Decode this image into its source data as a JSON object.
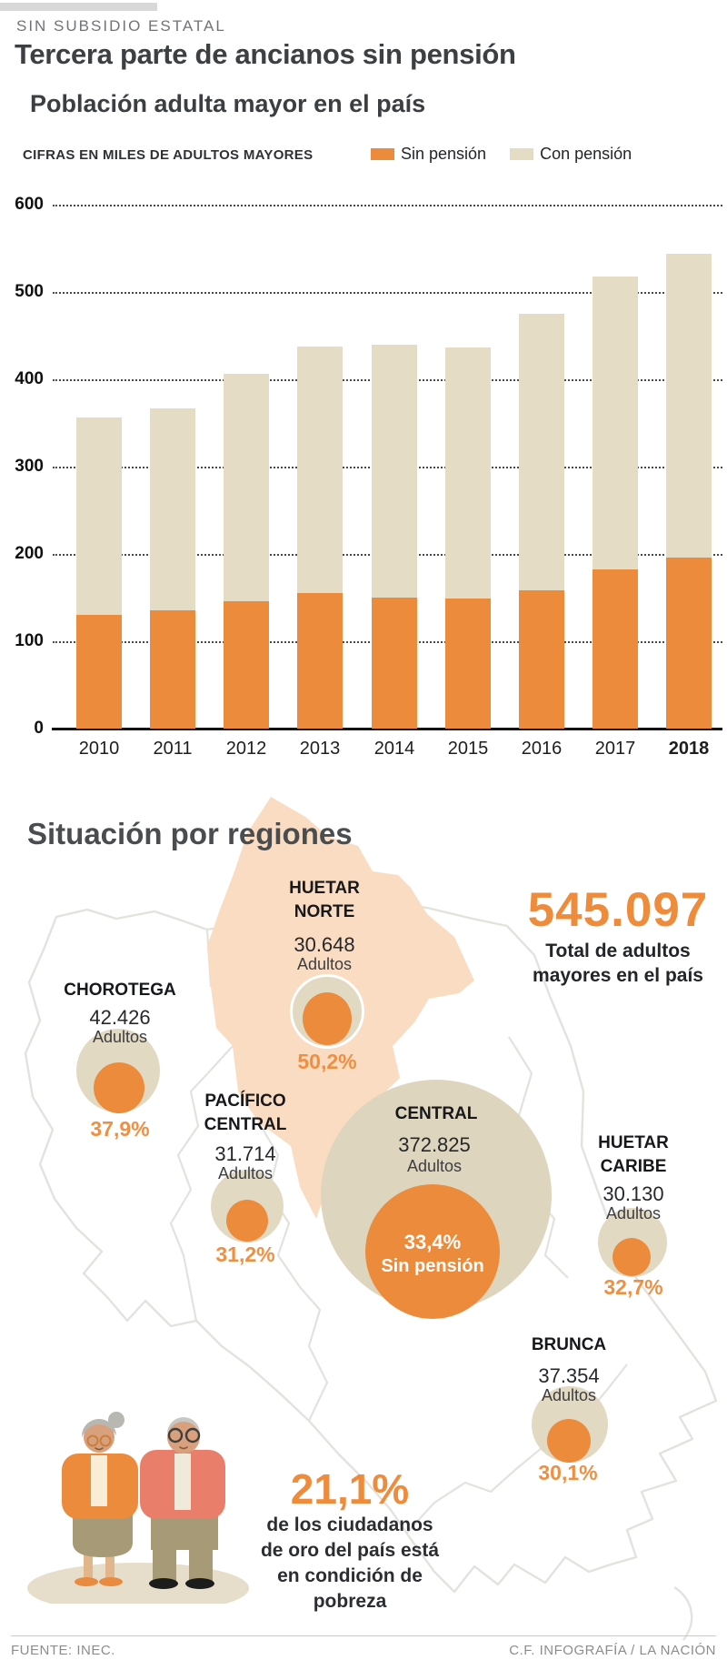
{
  "header": {
    "kicker": "SIN SUBSIDIO ESTATAL",
    "title": "Tercera parte de ancianos sin pensión"
  },
  "colors": {
    "accent_orange": "#EC8B3C",
    "percent_orange": "#EF8F41",
    "bar_beige": "#E5DCC6",
    "circle_beige": "#E2D9C2",
    "central_circle_beige": "#DED5BE",
    "huetar_norte_peach": "#FADCC2",
    "map_outline_gray": "#E4E2DC",
    "headline_gray": "#3C4043",
    "topbar_gray": "#D8D8D8",
    "footer_gray": "#8C8D8F"
  },
  "chart_data": {
    "type": "bar",
    "stacked": true,
    "title": "Población adulta mayor en el país",
    "note": "CIFRAS EN MILES DE ADULTOS MAYORES",
    "units": "thousands of older adults",
    "categories": [
      "2010",
      "2011",
      "2012",
      "2013",
      "2014",
      "2015",
      "2016",
      "2017",
      "2018"
    ],
    "series": [
      {
        "name": "Sin pensión",
        "color": "#EC8B3C",
        "values": [
          130,
          135,
          146,
          155,
          150,
          149,
          158,
          182,
          196
        ]
      },
      {
        "name": "Con pensión",
        "color": "#E5DCC6",
        "values": [
          226,
          232,
          260,
          283,
          290,
          287,
          317,
          336,
          348
        ]
      }
    ],
    "totals": [
      356,
      367,
      406,
      438,
      440,
      436,
      475,
      518,
      544
    ],
    "ylim": [
      0,
      600
    ],
    "yticks": [
      600,
      500,
      400,
      300,
      200,
      100,
      0
    ],
    "grid": "dotted-horizontal",
    "legend_position": "top-right",
    "bold_category": "2018"
  },
  "regions_section": {
    "title": "Situación por regiones"
  },
  "total": {
    "value": "545.097",
    "label_lines": [
      "Total de adultos",
      "mayores en el país"
    ]
  },
  "regions": [
    {
      "id": "huetar-norte",
      "lines": [
        "HUETAR",
        "NORTE"
      ],
      "adults": "30.648",
      "adults_label": "Adultos",
      "percent": "50,2%"
    },
    {
      "id": "chorotega",
      "lines": [
        "CHOROTEGA"
      ],
      "adults": "42.426",
      "adults_label": "Adultos",
      "percent": "37,9%"
    },
    {
      "id": "pacifico-central",
      "lines": [
        "PACÍFICO",
        "CENTRAL"
      ],
      "adults": "31.714",
      "adults_label": "Adultos",
      "percent": "31,2%"
    },
    {
      "id": "central",
      "lines": [
        "CENTRAL"
      ],
      "adults": "372.825",
      "adults_label": "Adultos",
      "percent": "33,4%",
      "percent_label": "Sin pensión"
    },
    {
      "id": "huetar-caribe",
      "lines": [
        "HUETAR",
        "CARIBE"
      ],
      "adults": "30.130",
      "adults_label": "Adultos",
      "percent": "32,7%"
    },
    {
      "id": "brunca",
      "lines": [
        "BRUNCA"
      ],
      "adults": "37.354",
      "adults_label": "Adultos",
      "percent": "30,1%"
    }
  ],
  "poverty": {
    "value": "21,1%",
    "lines": [
      "de los ciudadanos",
      "de oro del país está",
      "en condición de",
      "pobreza"
    ]
  },
  "footer": {
    "source": "FUENTE: INEC.",
    "credit": "C.F. INFOGRAFÍA / LA NACIÓN"
  }
}
